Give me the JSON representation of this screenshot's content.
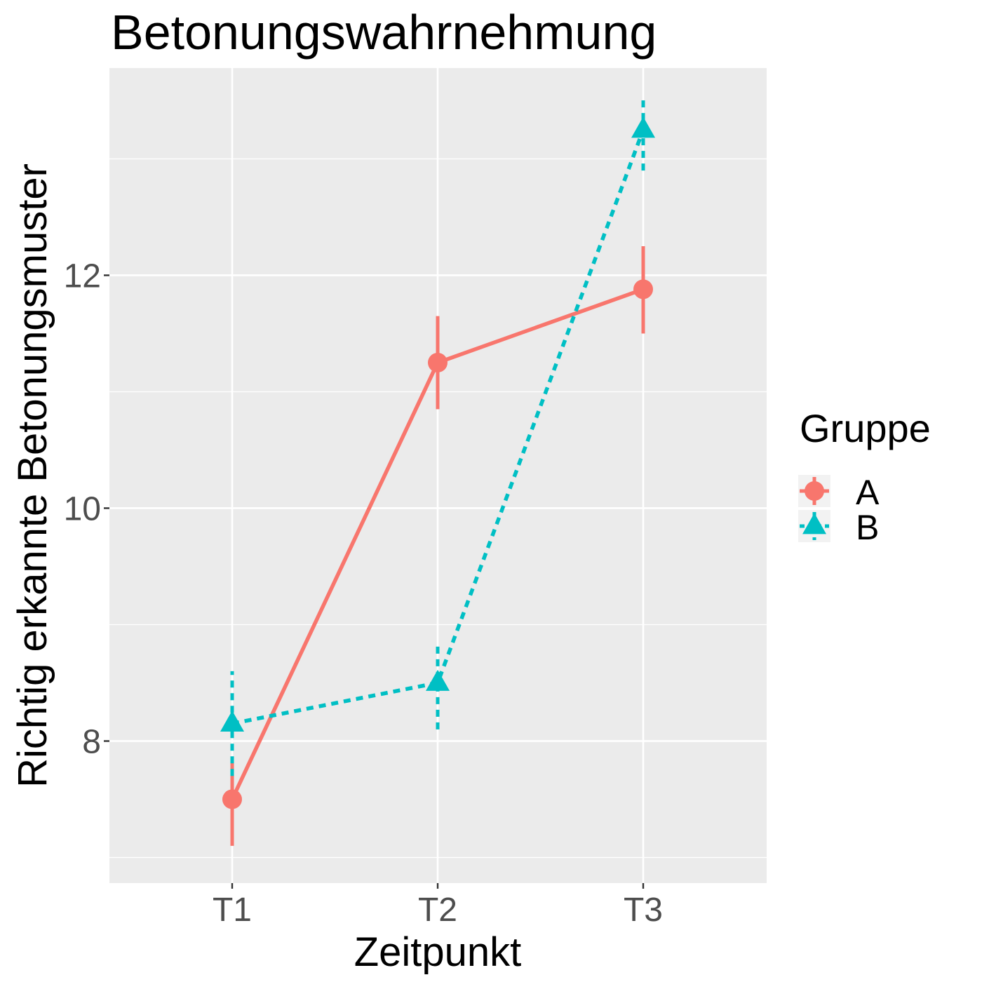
{
  "chart_data": {
    "type": "line",
    "title": "Betonungswahrnehmung",
    "xlabel": "Zeitpunkt",
    "ylabel": "Richtig erkannte Betonungsmuster",
    "categories": [
      "T1",
      "T2",
      "T3"
    ],
    "yticks": [
      8,
      10,
      12
    ],
    "ytick_labels": [
      "8",
      "10",
      "12"
    ],
    "ylim": [
      6.78,
      13.78
    ],
    "grid": true,
    "legend": {
      "title": "Gruppe",
      "position": "right"
    },
    "series": [
      {
        "name": "A",
        "color": "#F8766D",
        "line": "solid",
        "marker": "circle",
        "values": [
          7.5,
          11.25,
          11.88
        ],
        "error_low": [
          7.1,
          10.85,
          11.5
        ],
        "error_high": [
          7.85,
          11.65,
          12.25
        ]
      },
      {
        "name": "B",
        "color": "#00BFC4",
        "line": "dotted",
        "marker": "triangle",
        "values": [
          8.15,
          8.5,
          13.25
        ],
        "error_low": [
          7.7,
          8.1,
          12.9
        ],
        "error_high": [
          8.6,
          8.85,
          13.55
        ]
      }
    ]
  }
}
